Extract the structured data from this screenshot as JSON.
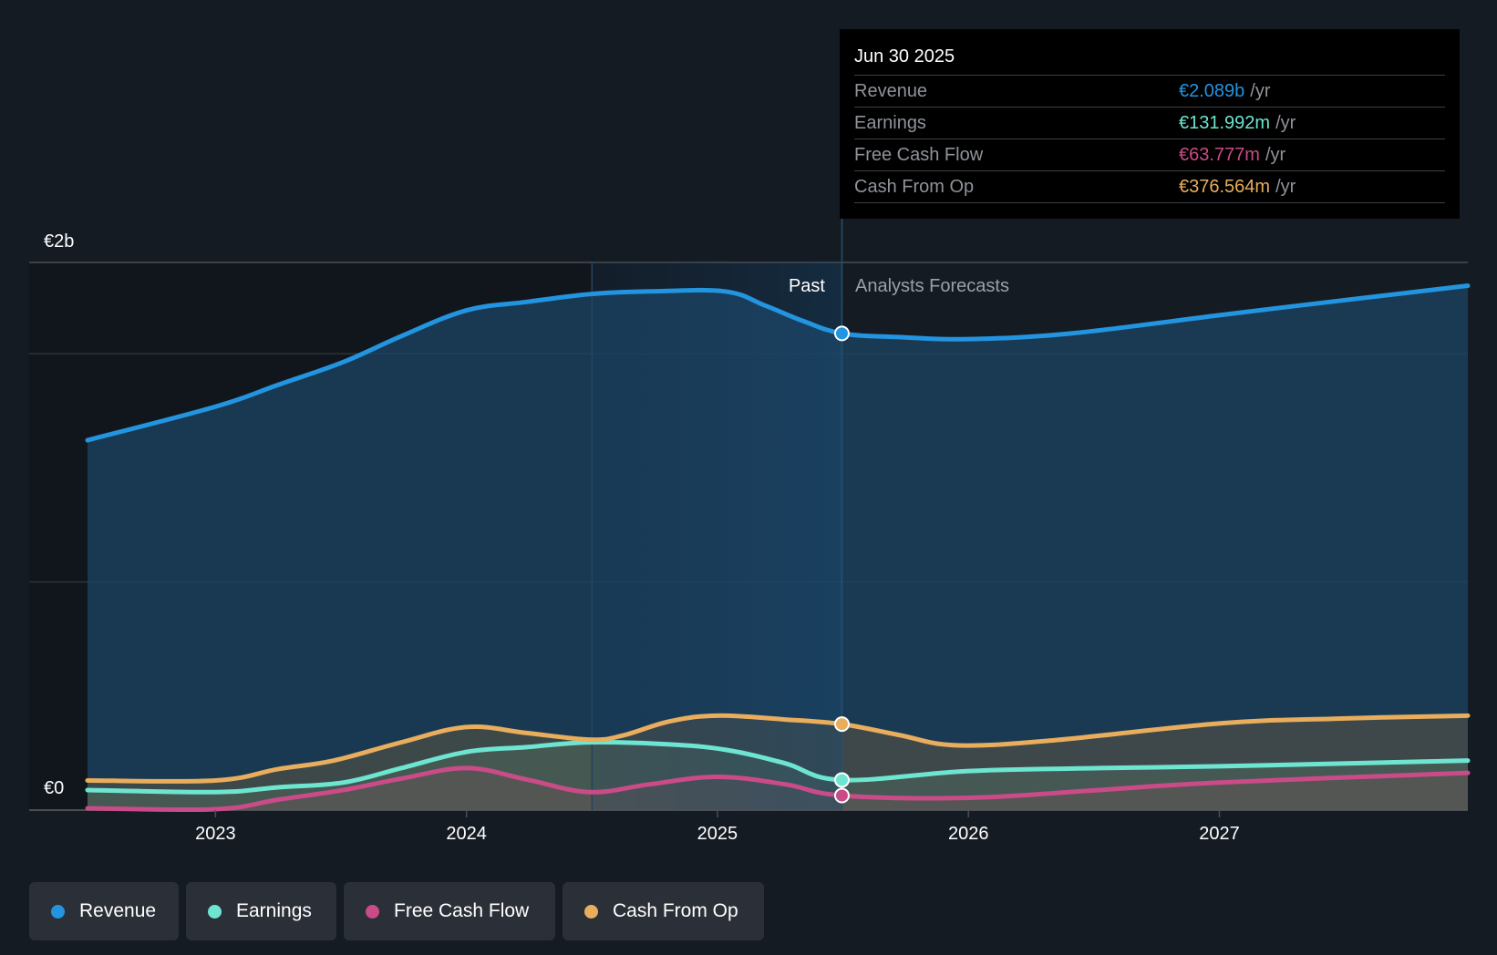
{
  "tooltip": {
    "date": "Jun 30 2025",
    "unit": "/yr",
    "rows": [
      {
        "label": "Revenue",
        "value": "€2.089b",
        "color": "#2394df"
      },
      {
        "label": "Earnings",
        "value": "€131.992m",
        "color": "#6ee5d0"
      },
      {
        "label": "Free Cash Flow",
        "value": "€63.777m",
        "color": "#c94b87"
      },
      {
        "label": "Cash From Op",
        "value": "€376.564m",
        "color": "#e8ad5d"
      }
    ]
  },
  "legend": [
    {
      "label": "Revenue",
      "color": "#2394df"
    },
    {
      "label": "Earnings",
      "color": "#6ee5d0"
    },
    {
      "label": "Free Cash Flow",
      "color": "#c94b87"
    },
    {
      "label": "Cash From Op",
      "color": "#e8ad5d"
    }
  ],
  "chart_data": {
    "type": "area",
    "title": "",
    "xlabel": "",
    "ylabel": "",
    "unit": "€m",
    "y_axis_labels": [
      {
        "label": "€2b",
        "value": 2000
      },
      {
        "label": "€0",
        "value": 0
      }
    ],
    "gridlines": [
      0,
      1000,
      2000,
      2400
    ],
    "ylim": [
      0,
      2400
    ],
    "xlim": [
      2022.49,
      2027.99
    ],
    "x_ticks": [
      {
        "label": "2023",
        "value": 2023
      },
      {
        "label": "2024",
        "value": 2024
      },
      {
        "label": "2025",
        "value": 2025
      },
      {
        "label": "2026",
        "value": 2026
      },
      {
        "label": "2027",
        "value": 2027
      }
    ],
    "regions": {
      "past_label": "Past",
      "forecast_label": "Analysts Forecasts",
      "divider_x": 2025.496,
      "highlight_start_x": 2024.5
    },
    "highlight_date": 2025.496,
    "legend_position": "bottom-left",
    "series": [
      {
        "name": "Revenue",
        "color": "#2394df",
        "x": [
          2022.49,
          2023.0,
          2023.25,
          2023.51,
          2023.74,
          2024.0,
          2024.24,
          2024.49,
          2024.73,
          2025.03,
          2025.19,
          2025.34,
          2025.496,
          2025.72,
          2026.0,
          2026.41,
          2027.0,
          2027.47,
          2027.99
        ],
        "values": [
          1621,
          1768,
          1864,
          1964,
          2077,
          2190,
          2227,
          2261,
          2273,
          2273,
          2211,
          2144,
          2089,
          2073,
          2064,
          2089,
          2169,
          2231,
          2298
        ]
      },
      {
        "name": "Earnings",
        "color": "#6ee5d0",
        "x": [
          2022.49,
          2023.0,
          2023.25,
          2023.51,
          2023.74,
          2024.0,
          2024.24,
          2024.49,
          2024.81,
          2025.04,
          2025.27,
          2025.496,
          2026.0,
          2026.52,
          2027.0,
          2027.99
        ],
        "values": [
          88,
          79,
          100,
          121,
          184,
          255,
          276,
          297,
          288,
          263,
          205,
          132,
          171,
          184,
          192,
          217
        ]
      },
      {
        "name": "Free Cash Flow",
        "color": "#c94b87",
        "x": [
          2022.49,
          2023.0,
          2023.25,
          2023.51,
          2023.74,
          2024.0,
          2024.24,
          2024.49,
          2024.73,
          2025.0,
          2025.27,
          2025.496,
          2026.0,
          2026.52,
          2027.0,
          2027.99
        ],
        "values": [
          8,
          4,
          46,
          88,
          138,
          184,
          134,
          79,
          113,
          146,
          113,
          64,
          54,
          88,
          121,
          163
        ]
      },
      {
        "name": "Cash From Op",
        "color": "#e8ad5d",
        "x": [
          2022.49,
          2023.0,
          2023.25,
          2023.47,
          2023.74,
          2024.0,
          2024.24,
          2024.49,
          2024.62,
          2024.81,
          2025.0,
          2025.27,
          2025.496,
          2025.72,
          2025.95,
          2026.33,
          2027.0,
          2027.47,
          2027.99
        ],
        "values": [
          130,
          130,
          180,
          217,
          297,
          364,
          338,
          309,
          326,
          389,
          414,
          397,
          377,
          330,
          284,
          305,
          380,
          401,
          414
        ]
      }
    ]
  }
}
